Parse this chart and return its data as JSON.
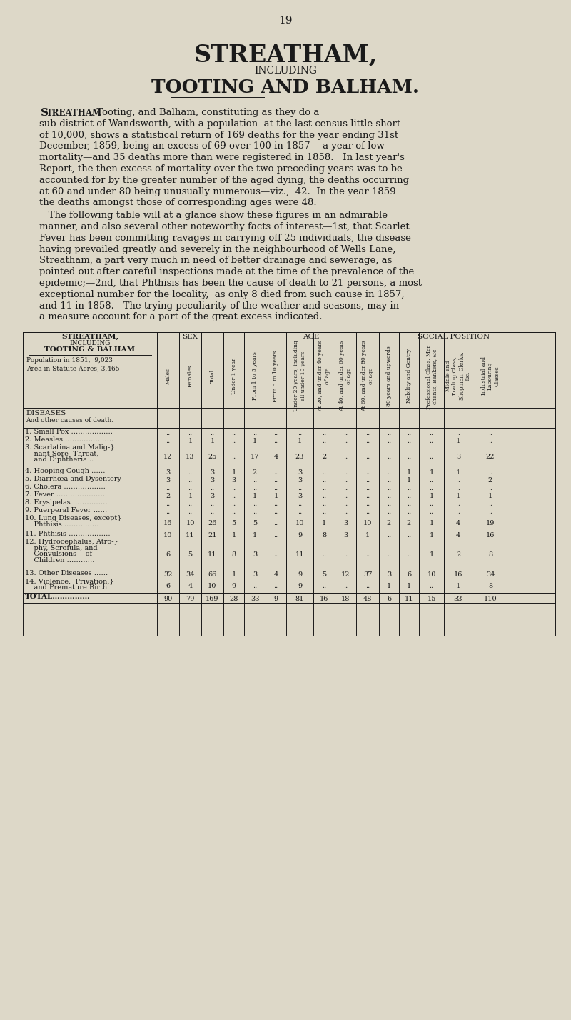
{
  "page_number": "19",
  "title_line1": "STREATHAM,",
  "title_line2": "INCLUDING",
  "title_line3": "TOOTING AND BALHAM.",
  "background_color": "#ddd8c8",
  "text_color": "#1a1a1a",
  "body_text_para1": [
    "    śtreatham, Tooting, and Balham, constituting as they do a",
    "sub-district of Wandsworth, with a population  at the last census little short",
    "of 10,000, shows a statistical return of 169 deaths for the year ending 31st",
    "December, 1859, being an excess of 69 over 100 in 1857— a year of low",
    "mortality—and 35 deaths more than were registered in 1858.   In last year's",
    "Report, the then excess of mortality over the two preceding years was to be",
    "accounted for by the greater number of the aged dying, the deaths occurring",
    "at 60 and under 80 being unusually numerous—viz.,  42.  In the year 1859",
    "the deaths amongst those of corresponding ages were 48."
  ],
  "body_text_para2": [
    "   The following table will at a glance show these figures in an admirable",
    "manner, and also several other noteworthy facts of interest—1st, that Scarlet",
    "Fever has been committing ravages in carrying off 25 individuals, the disease",
    "having prevailed greatly and severely in the neighbourhood of Wells Lane,",
    "Streatham, a part very much in need of better drainage and sewerage, as",
    "pointed out after careful inspections made at the time of the prevalence of the",
    "epidemic;—2nd, that Phthisis has been the cause of death to 21 persons, a most",
    "exceptional number for the locality,  as only 8 died from such cause in 1857,",
    "and 11 in 1858.   The trying peculiarity of the weather and seasons, may in",
    "a measure account for a part of the great excess indicated."
  ],
  "diseases": [
    "1. Small Pox ……………………………………",
    "2. Measles ……………………………………",
    "3. Scarlatina and Malig-",
    "4. Hooping Cough …………",
    "5. Diarrhœa and Dysentery",
    "6. Cholera ……………………",
    "7. Fever ………………………",
    "8. Erysipelas ………………",
    "9. Puerperal Fever ………",
    "10. Lung Diseases, except",
    "11. Phthisis ……………………",
    "12. Hydrocephalus, Atro-",
    "13. Other Diseases …………",
    "14. Violence,  Privation,",
    "TOTAL………………"
  ],
  "disease_continuation": [
    "",
    "",
    "   nant Sore  Throat,}\n   and Diphtheria ..}",
    "",
    "",
    "",
    "",
    "",
    "",
    "   Phthisis ………………}",
    "",
    "   phy, Scrofula, and}\n   Convulsions    of}\n   Children …………}",
    "",
    "   and Premature Birth}",
    ""
  ],
  "table_data": [
    [
      "..",
      "..",
      "..",
      "..",
      "..",
      "..",
      "..",
      "..",
      "..",
      "..",
      "..",
      "..",
      "..",
      "..",
      ".."
    ],
    [
      "..",
      "1",
      "1",
      "..",
      "1",
      "..",
      "1",
      "..",
      "..",
      "..",
      "..",
      "..",
      "..",
      "1",
      ".."
    ],
    [
      "12",
      "13",
      "25",
      "..",
      "17",
      "4",
      "23",
      "2",
      "..",
      "..",
      "..",
      "..",
      "..",
      "3",
      "22"
    ],
    [
      "3",
      "..",
      "3",
      "1",
      "2",
      "..",
      "3",
      "..",
      "..",
      "..",
      "..",
      "1",
      "1",
      "1",
      ".."
    ],
    [
      "3",
      "..",
      "3",
      "3",
      "..",
      "..",
      "3",
      "..",
      "..",
      "..",
      "..",
      "1",
      "..",
      "..",
      "2"
    ],
    [
      "..",
      "..",
      "..",
      "..",
      "..",
      "..",
      "..",
      "..",
      "..",
      "..",
      "..",
      "..",
      "..",
      "..",
      ".."
    ],
    [
      "2",
      "1",
      "3",
      "..",
      "1",
      "1",
      "3",
      "..",
      "..",
      "..",
      "..",
      "..",
      "1",
      "1",
      "1"
    ],
    [
      "..",
      "..",
      "..",
      "..",
      "..",
      "..",
      "..",
      "..",
      "..",
      "..",
      "..",
      "..",
      "..",
      "..",
      ".."
    ],
    [
      "..",
      "..",
      "..",
      "..",
      "..",
      "..",
      "..",
      "..",
      "..",
      "..",
      "..",
      "..",
      "..",
      "..",
      ".."
    ],
    [
      "16",
      "10",
      "26",
      "5",
      "5",
      "..",
      "10",
      "1",
      "3",
      "10",
      "2",
      "2",
      "1",
      "4",
      "19"
    ],
    [
      "10",
      "11",
      "21",
      "1",
      "1",
      "..",
      "9",
      "8",
      "3",
      "1",
      "..",
      "..",
      "1",
      "4",
      "16"
    ],
    [
      "6",
      "5",
      "11",
      "8",
      "3",
      "..",
      "11",
      "..",
      "..",
      "..",
      "..",
      "..",
      "1",
      "2",
      "8"
    ],
    [
      "32",
      "34",
      "66",
      "1",
      "3",
      "4",
      "9",
      "5",
      "12",
      "37",
      "3",
      "6",
      "10",
      "16",
      "34"
    ],
    [
      "6",
      "4",
      "10",
      "9",
      "..",
      "..",
      "9",
      "..",
      "..",
      "..",
      "1",
      "1",
      "..",
      "1",
      "8"
    ],
    [
      "90",
      "79",
      "169",
      "28",
      "33",
      "9",
      "81",
      "16",
      "18",
      "48",
      "6",
      "11",
      "15",
      "33",
      "110"
    ]
  ],
  "col_sub_headers": [
    "Males",
    "Females",
    "Total",
    "Under 1 year",
    "From 1 to 5 years",
    "From 5 to 10 years",
    "Under 20 years, including all under 10 years",
    "At 20, and under 40 years of age",
    "At 40, and under 60 years of age",
    "At 60, and under 80 years of age",
    "80 years and upwards",
    "Nobility and Gentry",
    "Professional Class, Mer- chants, Bankers, &c.",
    "Middle and Trading Class, Shopmen, Clerks, &c.",
    "Industrial and Labouring Classes"
  ]
}
